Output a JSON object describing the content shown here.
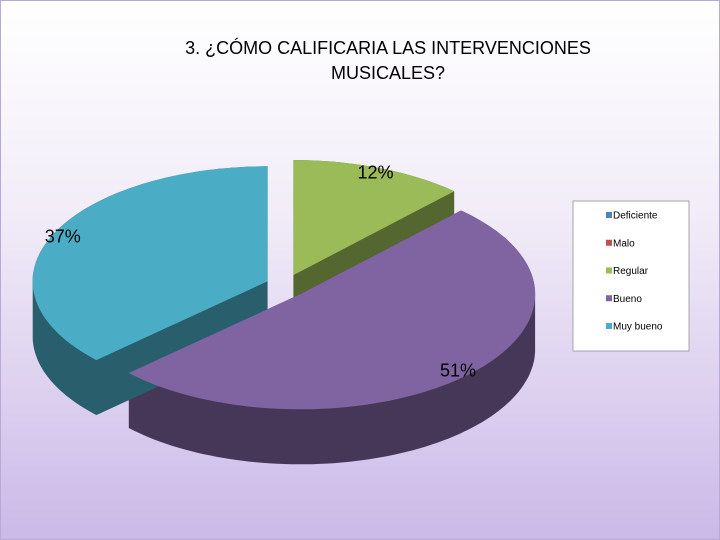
{
  "chart_data": {
    "type": "pie3d",
    "title": "3. ¿CÓMO CALIFICARIA LAS INTERVENCIONES MUSICALES?",
    "categories": [
      "Deficiente",
      "Malo",
      "Regular",
      "Bueno",
      "Muy bueno"
    ],
    "values": [
      0,
      0,
      12,
      51,
      37
    ],
    "value_labels": [
      null,
      null,
      "12%",
      "51%",
      "37%"
    ],
    "colors": [
      "#4f81bd",
      "#c0504d",
      "#9bbb59",
      "#8064a2",
      "#4bacc6"
    ],
    "legend": "right"
  }
}
